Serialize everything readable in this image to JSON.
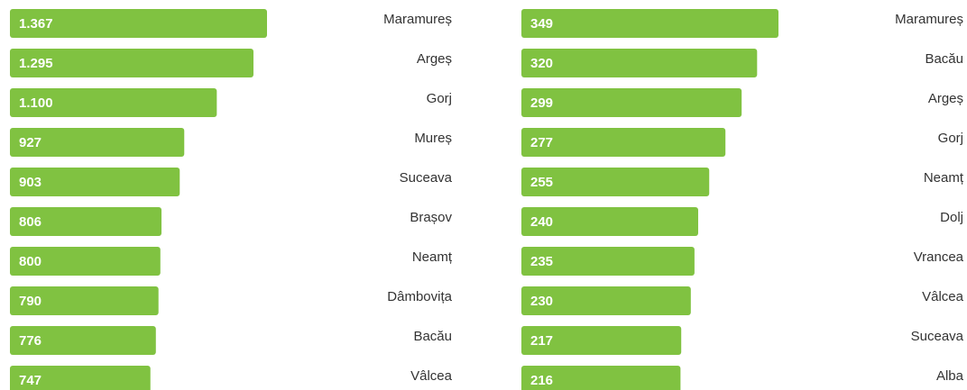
{
  "chart_data": [
    {
      "type": "bar",
      "orientation": "horizontal",
      "color": "#80c241",
      "categories": [
        "Maramureș",
        "Argeș",
        "Gorj",
        "Mureș",
        "Suceava",
        "Brașov",
        "Neamț",
        "Dâmbovița",
        "Bacău",
        "Vâlcea"
      ],
      "values": [
        1367,
        1295,
        1100,
        927,
        903,
        806,
        800,
        790,
        776,
        747
      ],
      "value_labels": [
        "1.367",
        "1.295",
        "1.100",
        "927",
        "903",
        "806",
        "800",
        "790",
        "776",
        "747"
      ]
    },
    {
      "type": "bar",
      "orientation": "horizontal",
      "color": "#80c241",
      "categories": [
        "Maramureș",
        "Bacău",
        "Argeș",
        "Gorj",
        "Neamț",
        "Dolj",
        "Vrancea",
        "Vâlcea",
        "Suceava",
        "Alba"
      ],
      "values": [
        349,
        320,
        299,
        277,
        255,
        240,
        235,
        230,
        217,
        216
      ]
    }
  ]
}
